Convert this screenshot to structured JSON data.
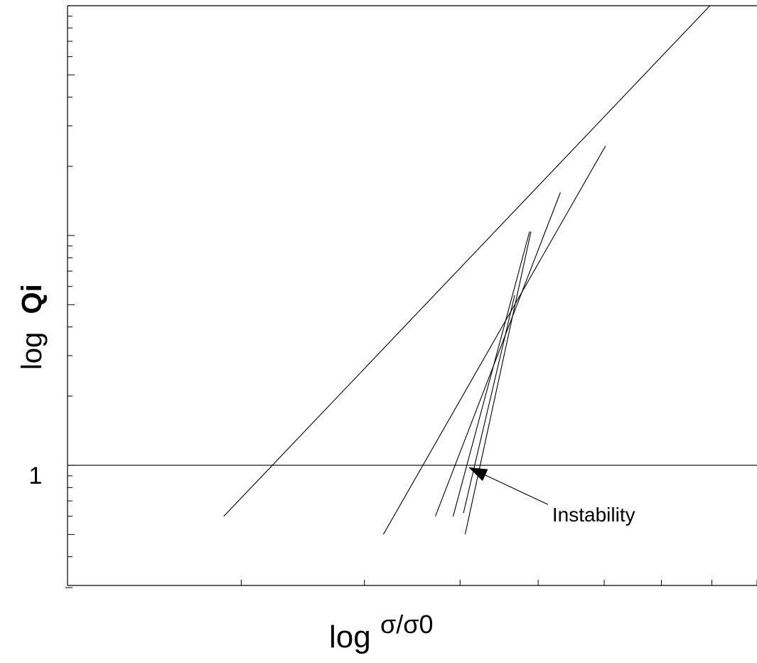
{
  "chart_data": {
    "type": "line",
    "title": "",
    "xlabel": {
      "prefix": "log",
      "main": "σ/σ0"
    },
    "ylabel": {
      "prefix": "log",
      "main": "Qi"
    },
    "x_scale": "log",
    "y_scale": "log",
    "xlim": [
      1,
      5
    ],
    "ylim": [
      0.3,
      100
    ],
    "x_ticks": [
      1.5,
      2,
      2.5,
      3,
      3.5,
      4,
      4.5,
      5
    ],
    "y_ticks": [
      {
        "value": 1,
        "label": "1"
      }
    ],
    "reference_lines": [
      {
        "axis": "y",
        "value": 1
      }
    ],
    "series": [
      {
        "x": [
          1.44,
          4.48
        ],
        "y": [
          0.6,
          100
        ]
      },
      {
        "x": [
          2.09,
          3.51
        ],
        "y": [
          0.5,
          24.5
        ]
      },
      {
        "x": [
          2.36,
          3.16
        ],
        "y": [
          0.6,
          15.4
        ]
      },
      {
        "x": [
          2.46,
          2.94
        ],
        "y": [
          0.6,
          10.4
        ]
      },
      {
        "x": [
          2.53,
          2.95
        ],
        "y": [
          0.5,
          10.4
        ]
      },
      {
        "x": [
          2.52,
          2.84
        ],
        "y": [
          0.62,
          5.5
        ]
      }
    ],
    "annotations": [
      {
        "text": "Instability",
        "x": 3.1,
        "y": 0.62,
        "arrow_to": {
          "x": 2.55,
          "y": 0.98
        }
      }
    ],
    "grid": false,
    "legend": "none"
  }
}
